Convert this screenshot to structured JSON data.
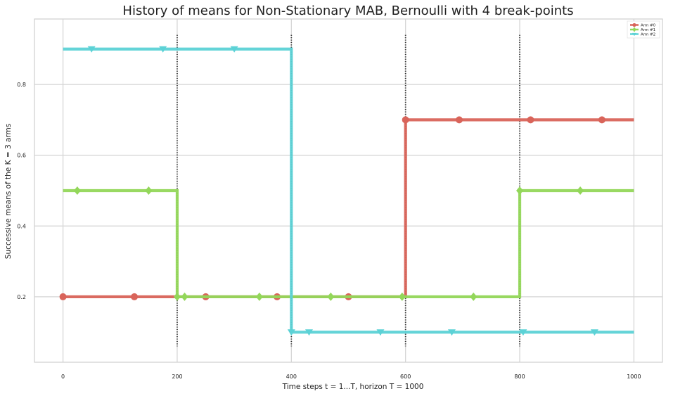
{
  "chart_data": {
    "type": "line",
    "title": "History of means for Non-Stationary MAB, Bernoulli with 4 break-points",
    "xlabel": "Time steps t = 1...T, horizon T = 1000",
    "ylabel": "Successive means of the K = 3 arms",
    "xlim": [
      -50,
      1050
    ],
    "ylim": [
      0.015,
      0.985
    ],
    "xticks": [
      0,
      200,
      400,
      600,
      800,
      1000
    ],
    "yticks": [
      0.2,
      0.4,
      0.6,
      0.8
    ],
    "xtick_labels": [
      "0",
      "200",
      "400",
      "600",
      "800",
      "1000"
    ],
    "ytick_labels": [
      "0.2",
      "0.4",
      "0.6",
      "0.8"
    ],
    "grid": true,
    "legend_position": "top-right",
    "break_points": [
      200,
      400,
      600,
      800
    ],
    "break_line_range": [
      0.06,
      0.94
    ],
    "series": [
      {
        "name": "Arm #0",
        "color": "#d9645a",
        "marker": "circle",
        "steps": [
          {
            "x": [
              0,
              200
            ],
            "y": 0.2
          },
          {
            "x": [
              200,
              400
            ],
            "y": 0.2
          },
          {
            "x": [
              400,
              600
            ],
            "y": 0.2
          },
          {
            "x": [
              600,
              800
            ],
            "y": 0.7
          },
          {
            "x": [
              800,
              1000
            ],
            "y": 0.7
          }
        ],
        "markers_x": [
          0,
          125,
          250,
          375,
          500,
          600,
          694,
          819,
          944
        ]
      },
      {
        "name": "Arm #1",
        "color": "#93d75a",
        "marker": "diamond",
        "steps": [
          {
            "x": [
              0,
              200
            ],
            "y": 0.5
          },
          {
            "x": [
              200,
              400
            ],
            "y": 0.2
          },
          {
            "x": [
              400,
              600
            ],
            "y": 0.2
          },
          {
            "x": [
              600,
              800
            ],
            "y": 0.2
          },
          {
            "x": [
              800,
              1000
            ],
            "y": 0.5
          }
        ],
        "markers_x": [
          25,
          150,
          200,
          213,
          344,
          469,
          594,
          719,
          800,
          906
        ]
      },
      {
        "name": "Arm #2",
        "color": "#5cd2d6",
        "marker": "triangle-down",
        "steps": [
          {
            "x": [
              0,
              200
            ],
            "y": 0.9
          },
          {
            "x": [
              200,
              400
            ],
            "y": 0.9
          },
          {
            "x": [
              400,
              600
            ],
            "y": 0.1
          },
          {
            "x": [
              600,
              800
            ],
            "y": 0.1
          },
          {
            "x": [
              800,
              1000
            ],
            "y": 0.1
          }
        ],
        "markers_x": [
          50,
          175,
          300,
          400,
          431,
          556,
          681,
          806,
          931
        ]
      }
    ]
  }
}
